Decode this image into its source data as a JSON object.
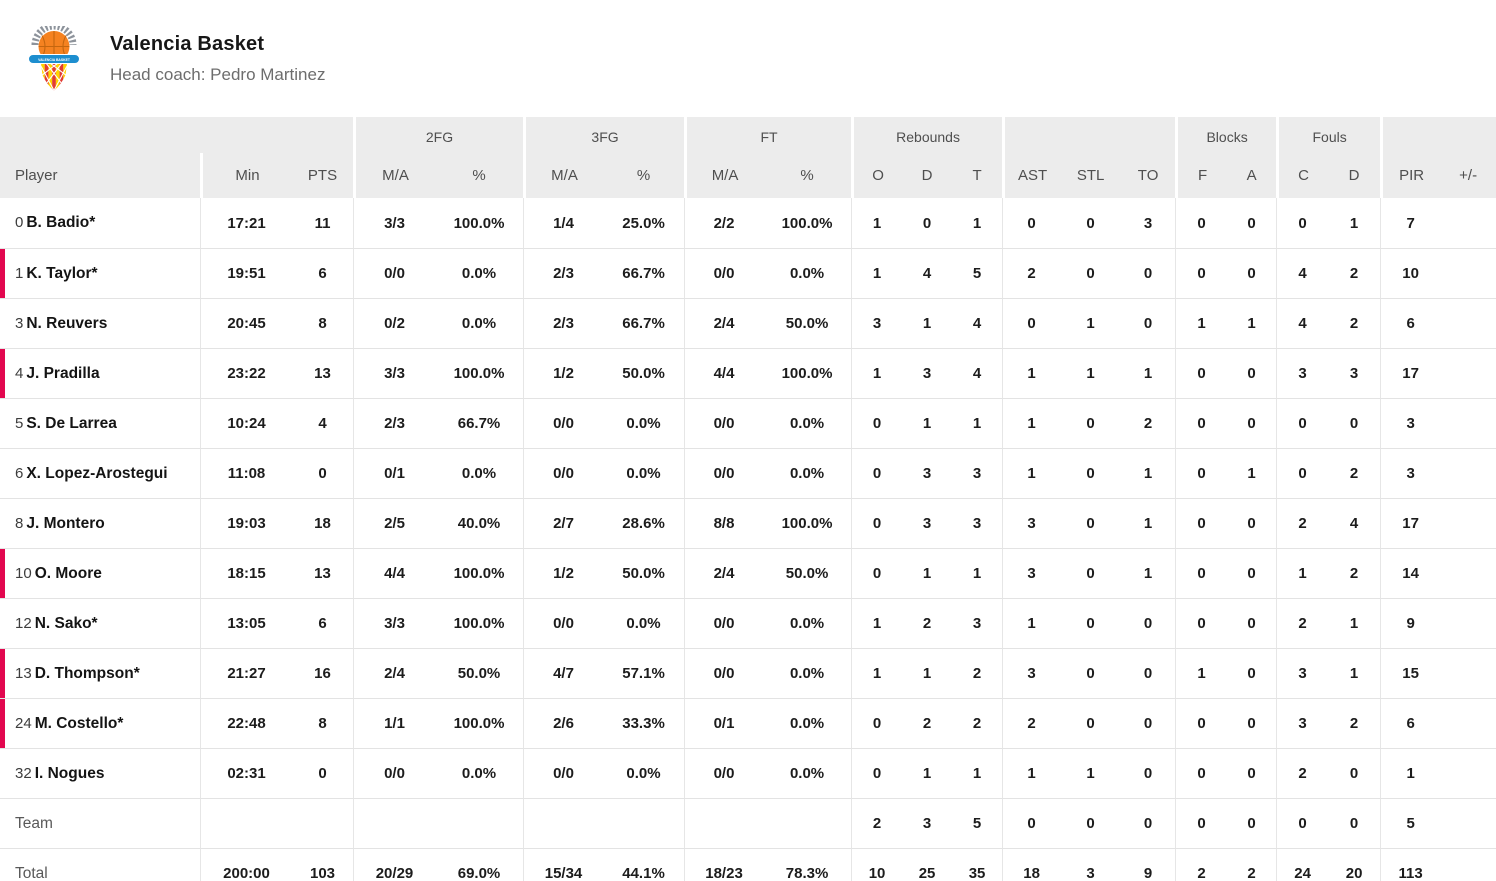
{
  "team": {
    "name": "Valencia Basket",
    "coach_label": "Head coach: Pedro Martinez",
    "logo": "valencia-basket-crest"
  },
  "colors": {
    "accent_bar": "#e2074f",
    "header_bg": "#ececec",
    "logo_orange": "#f58220",
    "logo_blue": "#1d8ecf",
    "logo_yellow": "#ffd300",
    "logo_red": "#e23c32"
  },
  "table": {
    "groups": [
      {
        "label": "2FG"
      },
      {
        "label": "3FG"
      },
      {
        "label": "FT"
      },
      {
        "label": "Rebounds"
      },
      {
        "label": "Blocks"
      },
      {
        "label": "Fouls"
      }
    ],
    "columns": [
      "Player",
      "Min",
      "PTS",
      "M/A",
      "%",
      "M/A",
      "%",
      "M/A",
      "%",
      "O",
      "D",
      "T",
      "AST",
      "STL",
      "TO",
      "F",
      "A",
      "C",
      "D",
      "PIR",
      "+/-"
    ],
    "rows": [
      {
        "number": "0",
        "name": "B. Badio*",
        "on_court": false,
        "min": "17:21",
        "pts": "11",
        "fg2_ma": "3/3",
        "fg2_pct": "100.0%",
        "fg3_ma": "1/4",
        "fg3_pct": "25.0%",
        "ft_ma": "2/2",
        "ft_pct": "100.0%",
        "reb_o": "1",
        "reb_d": "0",
        "reb_t": "1",
        "ast": "0",
        "stl": "0",
        "to": "3",
        "blk_f": "0",
        "blk_a": "0",
        "foul_c": "0",
        "foul_d": "1",
        "pir": "7",
        "pm": ""
      },
      {
        "number": "1",
        "name": "K. Taylor*",
        "on_court": true,
        "min": "19:51",
        "pts": "6",
        "fg2_ma": "0/0",
        "fg2_pct": "0.0%",
        "fg3_ma": "2/3",
        "fg3_pct": "66.7%",
        "ft_ma": "0/0",
        "ft_pct": "0.0%",
        "reb_o": "1",
        "reb_d": "4",
        "reb_t": "5",
        "ast": "2",
        "stl": "0",
        "to": "0",
        "blk_f": "0",
        "blk_a": "0",
        "foul_c": "4",
        "foul_d": "2",
        "pir": "10",
        "pm": ""
      },
      {
        "number": "3",
        "name": "N. Reuvers",
        "on_court": false,
        "min": "20:45",
        "pts": "8",
        "fg2_ma": "0/2",
        "fg2_pct": "0.0%",
        "fg3_ma": "2/3",
        "fg3_pct": "66.7%",
        "ft_ma": "2/4",
        "ft_pct": "50.0%",
        "reb_o": "3",
        "reb_d": "1",
        "reb_t": "4",
        "ast": "0",
        "stl": "1",
        "to": "0",
        "blk_f": "1",
        "blk_a": "1",
        "foul_c": "4",
        "foul_d": "2",
        "pir": "6",
        "pm": ""
      },
      {
        "number": "4",
        "name": "J. Pradilla",
        "on_court": true,
        "min": "23:22",
        "pts": "13",
        "fg2_ma": "3/3",
        "fg2_pct": "100.0%",
        "fg3_ma": "1/2",
        "fg3_pct": "50.0%",
        "ft_ma": "4/4",
        "ft_pct": "100.0%",
        "reb_o": "1",
        "reb_d": "3",
        "reb_t": "4",
        "ast": "1",
        "stl": "1",
        "to": "1",
        "blk_f": "0",
        "blk_a": "0",
        "foul_c": "3",
        "foul_d": "3",
        "pir": "17",
        "pm": ""
      },
      {
        "number": "5",
        "name": "S. De Larrea",
        "on_court": false,
        "min": "10:24",
        "pts": "4",
        "fg2_ma": "2/3",
        "fg2_pct": "66.7%",
        "fg3_ma": "0/0",
        "fg3_pct": "0.0%",
        "ft_ma": "0/0",
        "ft_pct": "0.0%",
        "reb_o": "0",
        "reb_d": "1",
        "reb_t": "1",
        "ast": "1",
        "stl": "0",
        "to": "2",
        "blk_f": "0",
        "blk_a": "0",
        "foul_c": "0",
        "foul_d": "0",
        "pir": "3",
        "pm": ""
      },
      {
        "number": "6",
        "name": "X. Lopez-Arostegui",
        "on_court": false,
        "min": "11:08",
        "pts": "0",
        "fg2_ma": "0/1",
        "fg2_pct": "0.0%",
        "fg3_ma": "0/0",
        "fg3_pct": "0.0%",
        "ft_ma": "0/0",
        "ft_pct": "0.0%",
        "reb_o": "0",
        "reb_d": "3",
        "reb_t": "3",
        "ast": "1",
        "stl": "0",
        "to": "1",
        "blk_f": "0",
        "blk_a": "1",
        "foul_c": "0",
        "foul_d": "2",
        "pir": "3",
        "pm": ""
      },
      {
        "number": "8",
        "name": "J. Montero",
        "on_court": false,
        "min": "19:03",
        "pts": "18",
        "fg2_ma": "2/5",
        "fg2_pct": "40.0%",
        "fg3_ma": "2/7",
        "fg3_pct": "28.6%",
        "ft_ma": "8/8",
        "ft_pct": "100.0%",
        "reb_o": "0",
        "reb_d": "3",
        "reb_t": "3",
        "ast": "3",
        "stl": "0",
        "to": "1",
        "blk_f": "0",
        "blk_a": "0",
        "foul_c": "2",
        "foul_d": "4",
        "pir": "17",
        "pm": ""
      },
      {
        "number": "10",
        "name": "O. Moore",
        "on_court": true,
        "min": "18:15",
        "pts": "13",
        "fg2_ma": "4/4",
        "fg2_pct": "100.0%",
        "fg3_ma": "1/2",
        "fg3_pct": "50.0%",
        "ft_ma": "2/4",
        "ft_pct": "50.0%",
        "reb_o": "0",
        "reb_d": "1",
        "reb_t": "1",
        "ast": "3",
        "stl": "0",
        "to": "1",
        "blk_f": "0",
        "blk_a": "0",
        "foul_c": "1",
        "foul_d": "2",
        "pir": "14",
        "pm": ""
      },
      {
        "number": "12",
        "name": "N. Sako*",
        "on_court": false,
        "min": "13:05",
        "pts": "6",
        "fg2_ma": "3/3",
        "fg2_pct": "100.0%",
        "fg3_ma": "0/0",
        "fg3_pct": "0.0%",
        "ft_ma": "0/0",
        "ft_pct": "0.0%",
        "reb_o": "1",
        "reb_d": "2",
        "reb_t": "3",
        "ast": "1",
        "stl": "0",
        "to": "0",
        "blk_f": "0",
        "blk_a": "0",
        "foul_c": "2",
        "foul_d": "1",
        "pir": "9",
        "pm": ""
      },
      {
        "number": "13",
        "name": "D. Thompson*",
        "on_court": true,
        "min": "21:27",
        "pts": "16",
        "fg2_ma": "2/4",
        "fg2_pct": "50.0%",
        "fg3_ma": "4/7",
        "fg3_pct": "57.1%",
        "ft_ma": "0/0",
        "ft_pct": "0.0%",
        "reb_o": "1",
        "reb_d": "1",
        "reb_t": "2",
        "ast": "3",
        "stl": "0",
        "to": "0",
        "blk_f": "1",
        "blk_a": "0",
        "foul_c": "3",
        "foul_d": "1",
        "pir": "15",
        "pm": ""
      },
      {
        "number": "24",
        "name": "M. Costello*",
        "on_court": true,
        "min": "22:48",
        "pts": "8",
        "fg2_ma": "1/1",
        "fg2_pct": "100.0%",
        "fg3_ma": "2/6",
        "fg3_pct": "33.3%",
        "ft_ma": "0/1",
        "ft_pct": "0.0%",
        "reb_o": "0",
        "reb_d": "2",
        "reb_t": "2",
        "ast": "2",
        "stl": "0",
        "to": "0",
        "blk_f": "0",
        "blk_a": "0",
        "foul_c": "3",
        "foul_d": "2",
        "pir": "6",
        "pm": ""
      },
      {
        "number": "32",
        "name": "I. Nogues",
        "on_court": false,
        "min": "02:31",
        "pts": "0",
        "fg2_ma": "0/0",
        "fg2_pct": "0.0%",
        "fg3_ma": "0/0",
        "fg3_pct": "0.0%",
        "ft_ma": "0/0",
        "ft_pct": "0.0%",
        "reb_o": "0",
        "reb_d": "1",
        "reb_t": "1",
        "ast": "1",
        "stl": "1",
        "to": "0",
        "blk_f": "0",
        "blk_a": "0",
        "foul_c": "2",
        "foul_d": "0",
        "pir": "1",
        "pm": ""
      }
    ],
    "team_row": {
      "label": "Team",
      "min": "",
      "pts": "",
      "fg2_ma": "",
      "fg2_pct": "",
      "fg3_ma": "",
      "fg3_pct": "",
      "ft_ma": "",
      "ft_pct": "",
      "reb_o": "2",
      "reb_d": "3",
      "reb_t": "5",
      "ast": "0",
      "stl": "0",
      "to": "0",
      "blk_f": "0",
      "blk_a": "0",
      "foul_c": "0",
      "foul_d": "0",
      "pir": "5",
      "pm": ""
    },
    "total_row": {
      "label": "Total",
      "min": "200:00",
      "pts": "103",
      "fg2_ma": "20/29",
      "fg2_pct": "69.0%",
      "fg3_ma": "15/34",
      "fg3_pct": "44.1%",
      "ft_ma": "18/23",
      "ft_pct": "78.3%",
      "reb_o": "10",
      "reb_d": "25",
      "reb_t": "35",
      "ast": "18",
      "stl": "3",
      "to": "9",
      "blk_f": "2",
      "blk_a": "2",
      "foul_c": "24",
      "foul_d": "20",
      "pir": "113",
      "pm": ""
    }
  }
}
